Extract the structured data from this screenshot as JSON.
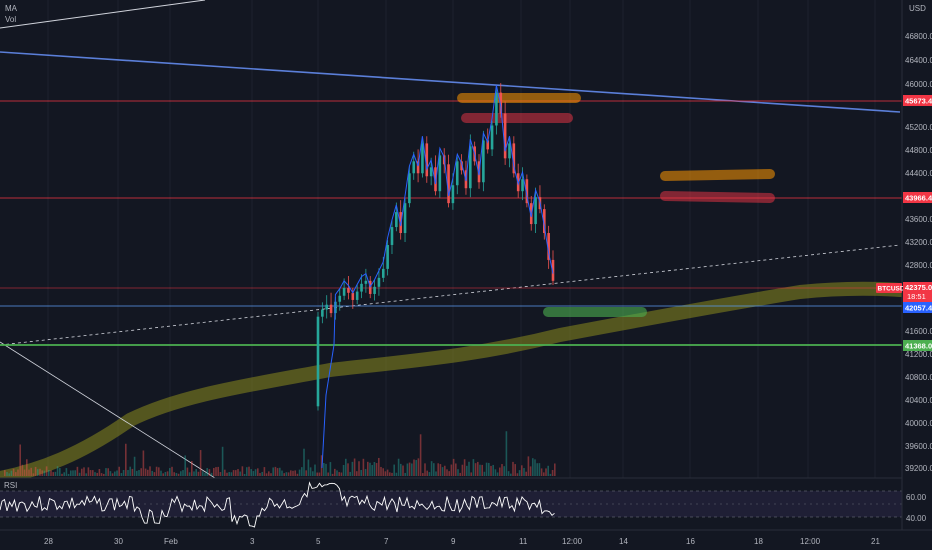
{
  "legend": {
    "ma": "MA",
    "vol": "Vol"
  },
  "price_axis": {
    "currency": "USD",
    "ticks": [
      "46800.0",
      "46400.0",
      "46000.0",
      "45200.0",
      "44800.0",
      "44400.0",
      "43600.0",
      "43200.0",
      "42800.0",
      "41600.0",
      "41200.0",
      "40800.0",
      "40400.0",
      "40000.0",
      "39600.0",
      "39200.0"
    ]
  },
  "levels": [
    {
      "label": "45673.4",
      "color": "#f23645"
    },
    {
      "label": "43966.4",
      "color": "#f23645"
    },
    {
      "label": "42375.0",
      "color": "#f23645"
    },
    {
      "label": "42057.4",
      "color": "#2962ff"
    },
    {
      "label": "41368.0",
      "color": "#4caf50"
    }
  ],
  "ticker": {
    "symbol": "BTCUSD",
    "countdown": "18:51"
  },
  "rsi": {
    "label": "RSI",
    "ticks": [
      "60.00",
      "40.00"
    ]
  },
  "time_axis": {
    "labels": [
      "28",
      "30",
      "Feb",
      "3",
      "5",
      "7",
      "9",
      "11",
      "12:00",
      "14",
      "16",
      "18",
      "12:00",
      "21"
    ]
  },
  "chart_data": {
    "type": "candlestick",
    "title": "",
    "series_note": "BTCUSD candles with MA, volume and RSI panes",
    "ylim": [
      39000,
      47000
    ],
    "horizontal_levels": [
      45673.4,
      43966.4,
      42375.0,
      42057.4,
      41368.0
    ],
    "zones": [
      {
        "color": "#ff9800",
        "y": 45680
      },
      {
        "color": "#f23645",
        "y": 45300
      },
      {
        "color": "#ff9800",
        "y": 44370
      },
      {
        "color": "#f23645",
        "y": 44000
      },
      {
        "color": "#4caf50",
        "y": 41920
      }
    ],
    "candle_closes": [
      41700,
      41820,
      41900,
      41760,
      41950,
      42050,
      42180,
      42100,
      41980,
      42120,
      42250,
      42300,
      42080,
      42200,
      42350,
      42500,
      42900,
      43200,
      43450,
      43100,
      43600,
      44100,
      44300,
      44100,
      44600,
      44050,
      44200,
      43800,
      44400,
      44250,
      43600,
      43900,
      44300,
      44150,
      43850,
      44550,
      44300,
      43950,
      44650,
      44500,
      44900,
      45450,
      45100,
      44350,
      44600,
      44100,
      43800,
      44000,
      43600,
      43250,
      43700,
      43500,
      43100,
      42650,
      42300
    ]
  },
  "colors": {
    "up": "#26a69a",
    "down": "#ef5350",
    "ma": "#2962ff",
    "trend": "#5b7fd9",
    "band": "#8b8b1e"
  }
}
